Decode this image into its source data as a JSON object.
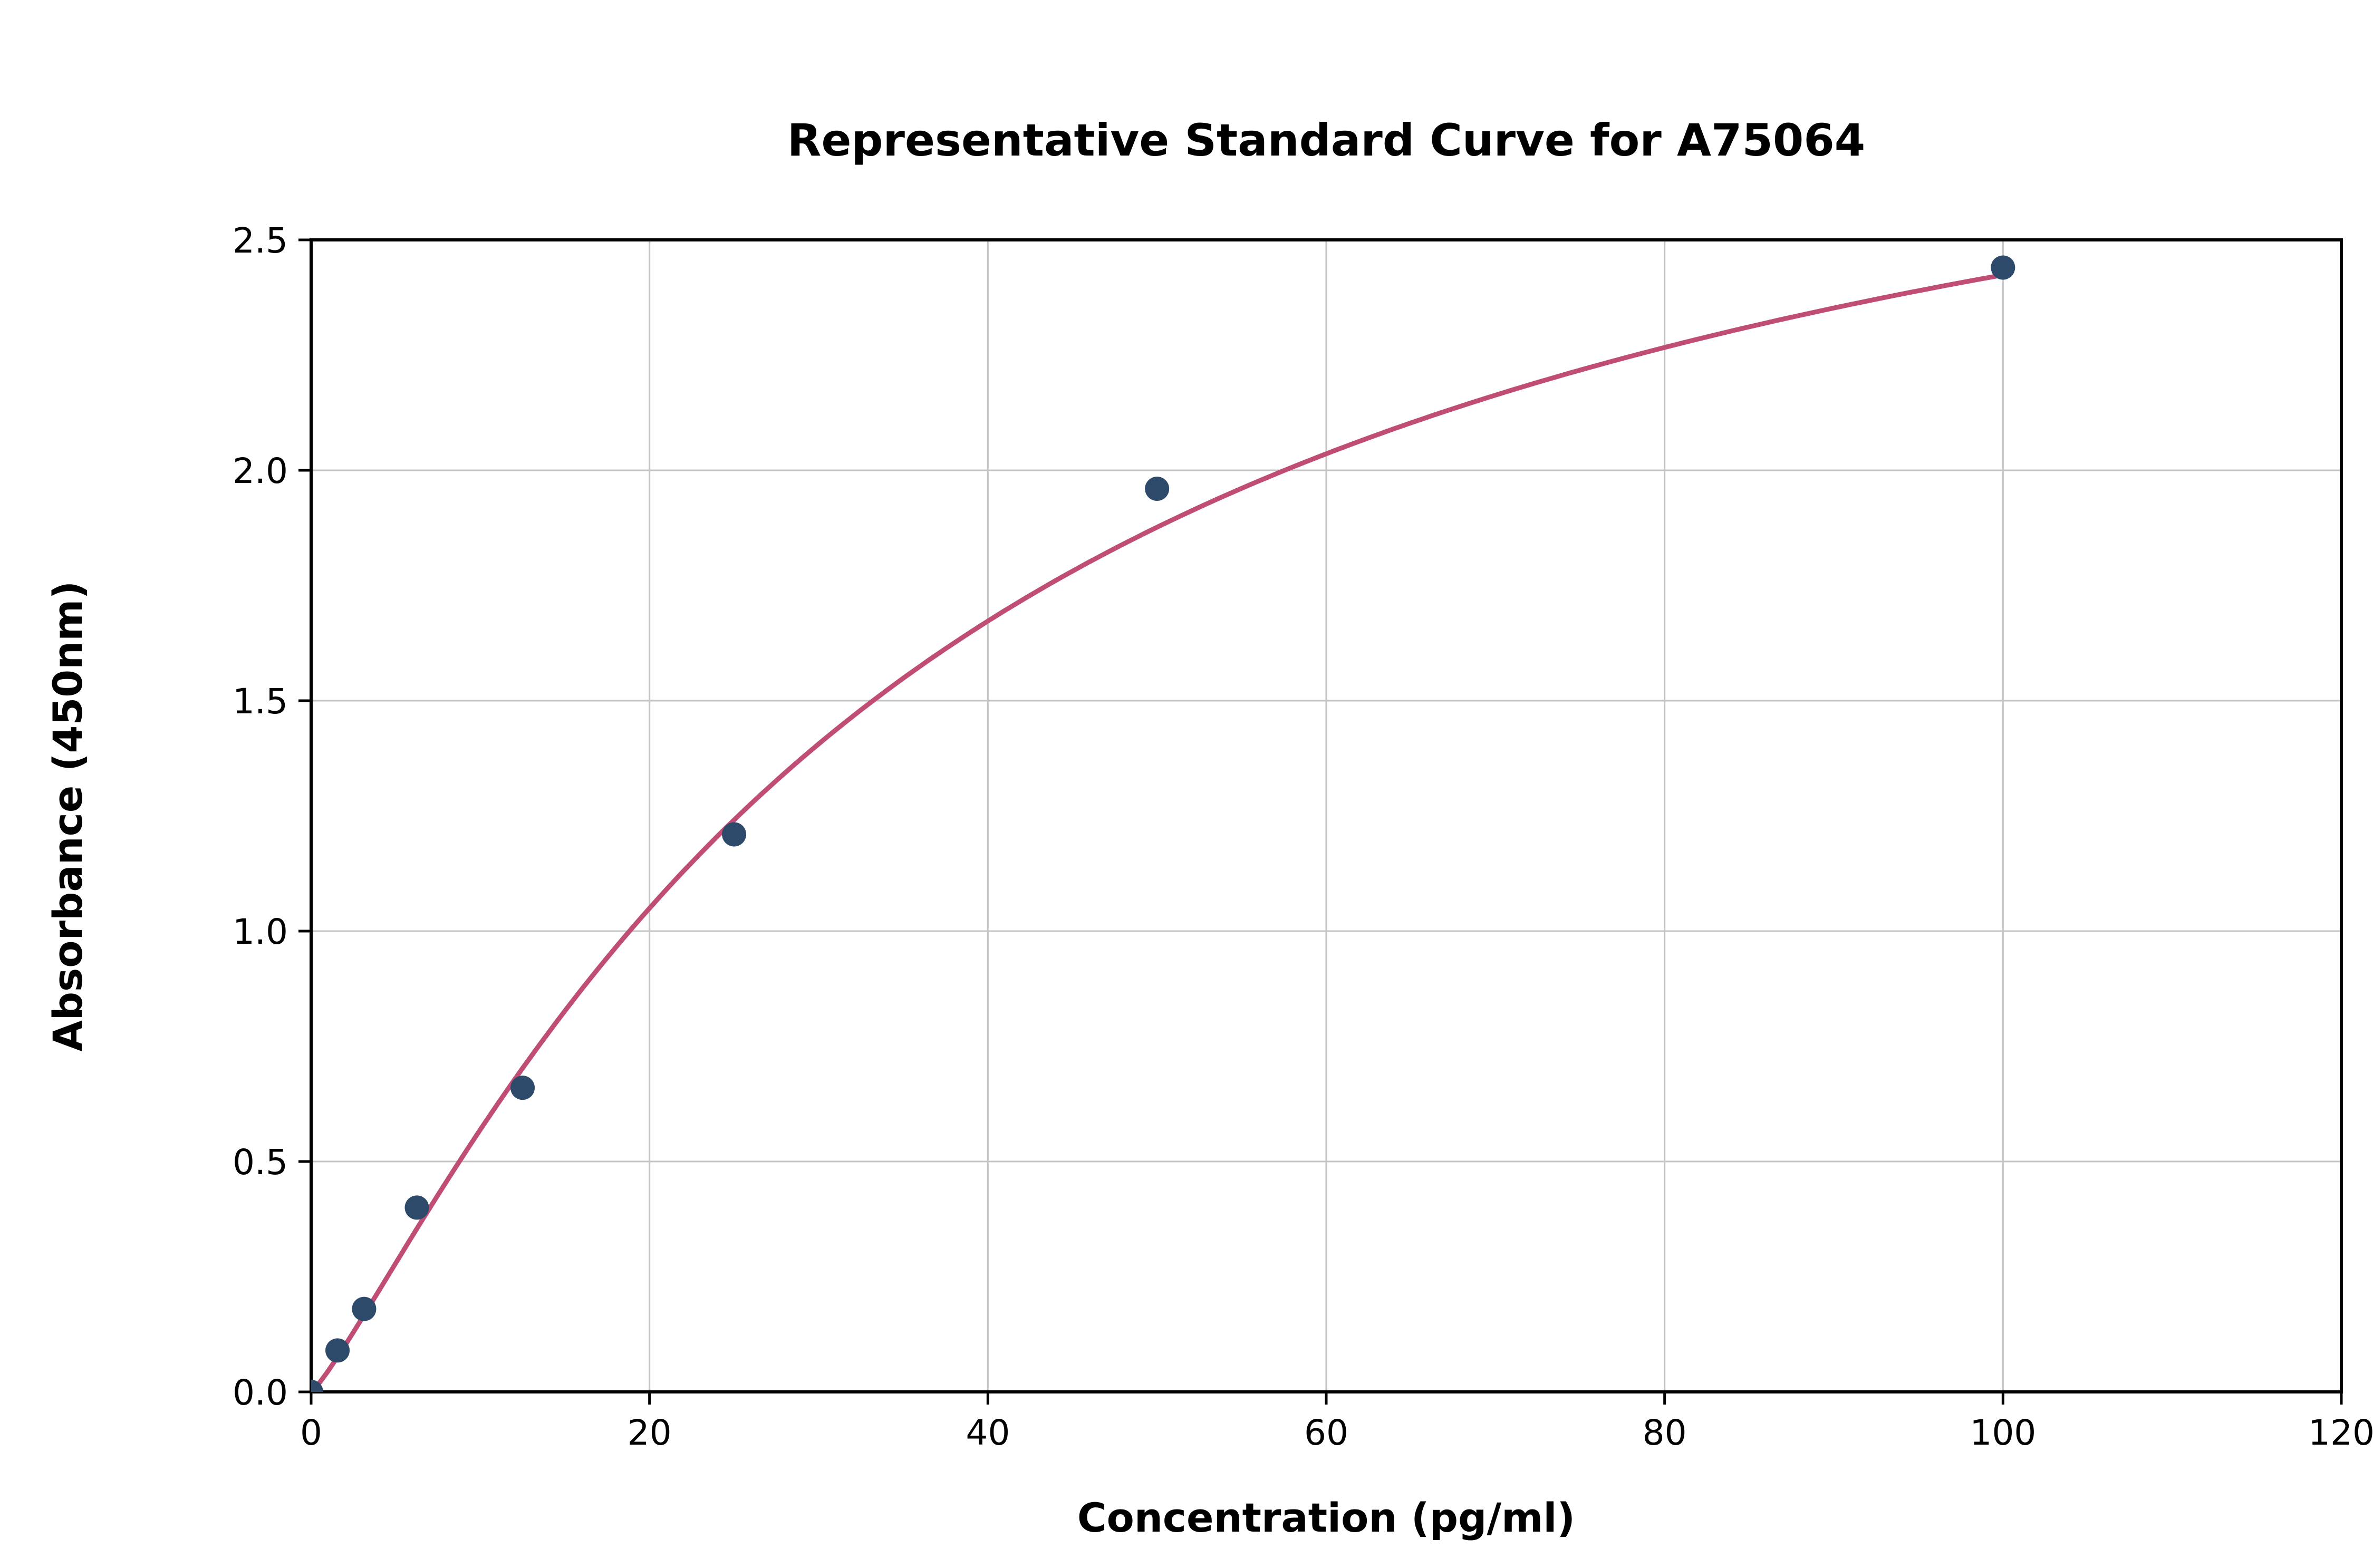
{
  "chart_data": {
    "type": "scatter",
    "title": "Representative Standard Curve for A75064",
    "xlabel": "Concentration (pg/ml)",
    "ylabel": "Absorbance (450nm)",
    "xlim": [
      0,
      120
    ],
    "ylim": [
      0,
      2.5
    ],
    "xticks": [
      0,
      20,
      40,
      60,
      80,
      100,
      120
    ],
    "xtick_labels": [
      "0",
      "20",
      "40",
      "60",
      "80",
      "100",
      "120"
    ],
    "yticks": [
      0,
      0.5,
      1.0,
      1.5,
      2.0,
      2.5
    ],
    "ytick_labels": [
      "0.0",
      "0.5",
      "1.0",
      "1.5",
      "2.0",
      "2.5"
    ],
    "grid": true,
    "legend": "none",
    "points": [
      {
        "x": 0,
        "y": 0.0
      },
      {
        "x": 1.56,
        "y": 0.09
      },
      {
        "x": 3.13,
        "y": 0.18
      },
      {
        "x": 6.25,
        "y": 0.4
      },
      {
        "x": 12.5,
        "y": 0.66
      },
      {
        "x": 25,
        "y": 1.21
      },
      {
        "x": 50,
        "y": 1.96
      },
      {
        "x": 100,
        "y": 2.44
      }
    ],
    "fit_curve": {
      "model": "4pl",
      "a": 0,
      "b": 1.18,
      "c": 36,
      "d": 3.15,
      "x_range": [
        0,
        100
      ]
    },
    "colors": {
      "point": "#2e4a6b",
      "curve": "#bf4d75",
      "grid": "#c4c4c4",
      "axis": "#000000"
    }
  }
}
